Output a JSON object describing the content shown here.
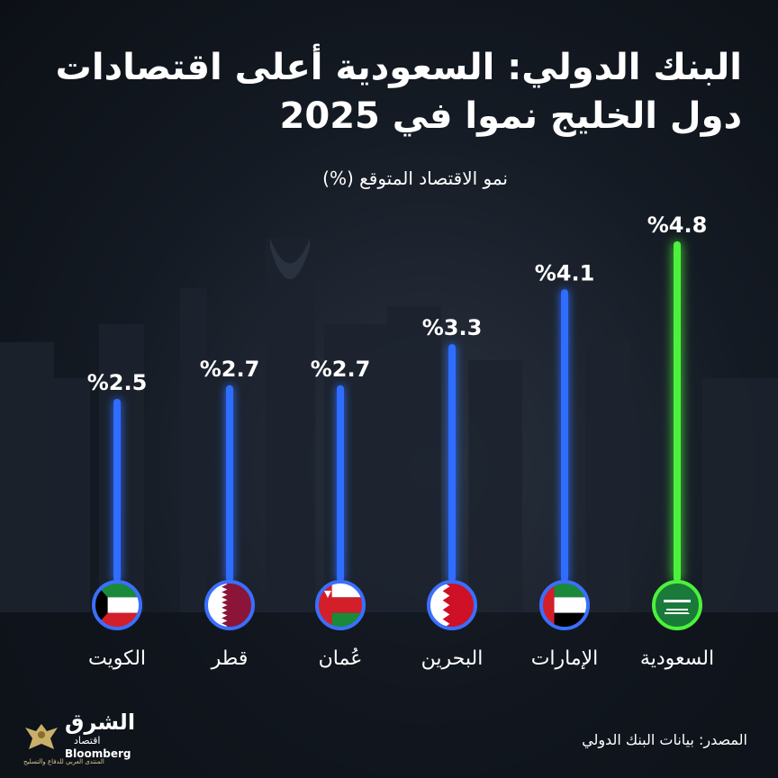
{
  "title": "البنك الدولي: السعودية أعلى اقتصادات دول الخليج نموا في 2025",
  "subtitle": "نمو الاقتصاد المتوقع (%)",
  "source": "المصدر: بيانات البنك الدولي",
  "logo": {
    "name": "الشرق",
    "sub": "اقتصاد",
    "partner": "Bloomberg",
    "watermark": "المنتدى العربي للدفاع والتسليح"
  },
  "colors": {
    "bar": "#2f6dff",
    "highlight": "#4bf23a",
    "text": "#ffffff"
  },
  "chart_data": {
    "type": "bar",
    "orientation": "vertical",
    "categories": [
      "الكويت",
      "قطر",
      "عُمان",
      "البحرين",
      "الإمارات",
      "السعودية"
    ],
    "values": [
      2.5,
      2.7,
      2.7,
      3.3,
      4.1,
      4.8
    ],
    "value_labels": [
      "%2.5",
      "%2.7",
      "%2.7",
      "%3.3",
      "%4.1",
      "%4.8"
    ],
    "highlight": "السعودية",
    "flags": [
      "kuwait-flag-icon",
      "qatar-flag-icon",
      "oman-flag-icon",
      "bahrain-flag-icon",
      "uae-flag-icon",
      "saudi-flag-icon"
    ]
  }
}
